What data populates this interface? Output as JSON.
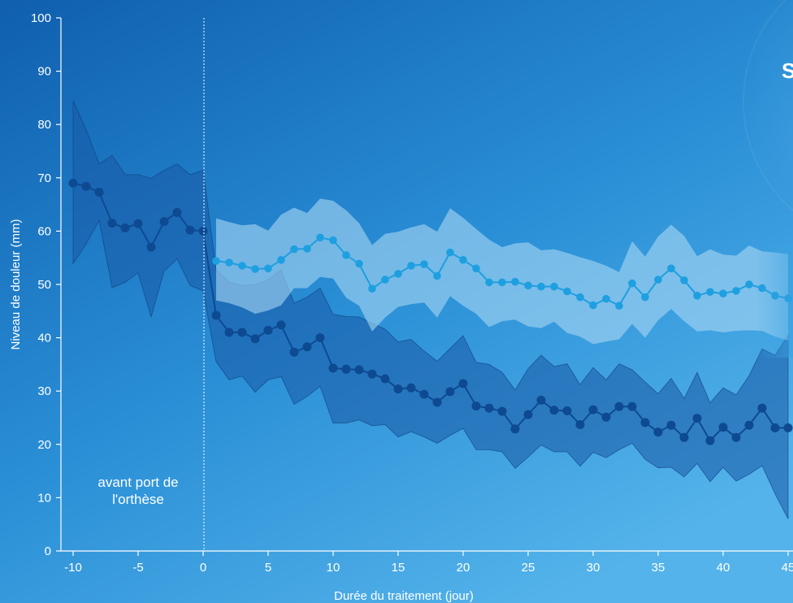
{
  "chart_data": {
    "type": "line",
    "xlabel": "Durée du traitement (jour)",
    "ylabel": "Niveau de douleur (mm)",
    "xlim": [
      -11,
      46
    ],
    "ylim": [
      0,
      100
    ],
    "x_ticks": [
      -10,
      -5,
      0,
      5,
      10,
      15,
      20,
      25,
      30,
      35,
      40,
      45
    ],
    "y_ticks": [
      0,
      10,
      20,
      30,
      40,
      50,
      60,
      70,
      80,
      90,
      100
    ],
    "annotation": "avant port de l'orthèse",
    "annotation_lines": [
      "avant port de",
      "l'orthèse"
    ],
    "divider_x": 0,
    "partial_edge_text": "S",
    "series": [
      {
        "color": "#0d4a92",
        "band_color": "#1a5aa6",
        "x": [
          -10,
          -9,
          -8,
          -7,
          -6,
          -5,
          -4,
          -3,
          -2,
          -1,
          0,
          1,
          2,
          3,
          4,
          5,
          6,
          7,
          8,
          9,
          10,
          11,
          12,
          13,
          14,
          15,
          16,
          17,
          18,
          19,
          20,
          21,
          22,
          23,
          24,
          25,
          26,
          27,
          28,
          29,
          30,
          31,
          32,
          33,
          34,
          35,
          36,
          37,
          38,
          39,
          40,
          41,
          42,
          43,
          44,
          45
        ],
        "mean": [
          69,
          68.4,
          67.3,
          61.5,
          60.6,
          61.4,
          57,
          61.8,
          63.5,
          60.2,
          60,
          44.2,
          41,
          41,
          39.8,
          41.4,
          42.4,
          37.3,
          38.3,
          40,
          34.3,
          34.1,
          34,
          33.2,
          32.3,
          30.4,
          30.6,
          29.4,
          27.9,
          29.9,
          31.4,
          27.2,
          26.8,
          26.2,
          22.9,
          25.6,
          28.3,
          26.4,
          26.3,
          23.7,
          26.5,
          25.1,
          27.1,
          27.1,
          24.1,
          22.3,
          23.6,
          21.3,
          24.9,
          20.7,
          23.2,
          21.3,
          23.6,
          26.8,
          23.1,
          23.1
        ],
        "upper": [
          84.5,
          79,
          72.6,
          74.2,
          70.6,
          70.6,
          69.9,
          71.4,
          72.6,
          70.6,
          71.4,
          52.8,
          50.4,
          49.8,
          50,
          50.9,
          52.7,
          46.5,
          47.6,
          49.3,
          44.4,
          44,
          43.9,
          42.7,
          41.6,
          39.2,
          39.7,
          37.5,
          35.6,
          38,
          40.4,
          35.4,
          35,
          33.5,
          30.2,
          34.2,
          36.7,
          34.6,
          35.1,
          31.2,
          34.4,
          32.1,
          35.1,
          34,
          31.7,
          29.5,
          32.4,
          28.6,
          33.5,
          27.8,
          30.6,
          29.3,
          32.9,
          37.9,
          36.7,
          40.5
        ],
        "lower": [
          53.9,
          57.6,
          62,
          49.4,
          50.4,
          52.2,
          43.9,
          52.5,
          54.8,
          49.8,
          48.8,
          35.5,
          32.1,
          32.8,
          29.8,
          32.1,
          32.7,
          27.5,
          29,
          30.9,
          24,
          24,
          24.6,
          23.5,
          23.7,
          21.4,
          22.4,
          21.4,
          20.2,
          21.7,
          23,
          19,
          19,
          18.6,
          15.5,
          17.6,
          19.9,
          18.6,
          18.6,
          15.9,
          18.5,
          17.5,
          19,
          20.2,
          17.2,
          15.6,
          15.7,
          13.9,
          16.4,
          13,
          15.7,
          13.1,
          14.4,
          16,
          10.7,
          6
        ]
      },
      {
        "color": "#1e9fe0",
        "band_color": "#a9d7f3",
        "x": [
          1,
          2,
          3,
          4,
          5,
          6,
          7,
          8,
          9,
          10,
          11,
          12,
          13,
          14,
          15,
          16,
          17,
          18,
          19,
          20,
          21,
          22,
          23,
          24,
          25,
          26,
          27,
          28,
          29,
          30,
          31,
          32,
          33,
          34,
          35,
          36,
          37,
          38,
          39,
          40,
          41,
          42,
          43,
          44,
          45
        ],
        "mean": [
          54.4,
          54.1,
          53.5,
          52.9,
          53,
          54.6,
          56.6,
          56.7,
          58.8,
          58.3,
          55.5,
          53.9,
          49.2,
          50.9,
          52,
          53.5,
          53.8,
          51.6,
          56,
          54.6,
          53,
          50.4,
          50.4,
          50.5,
          49.8,
          49.6,
          49.6,
          48.7,
          47.6,
          46.1,
          47.3,
          46,
          50.2,
          47.6,
          50.9,
          53,
          50.8,
          47.9,
          48.6,
          48.3,
          48.8,
          50,
          49.3,
          47.9,
          47.4
        ],
        "upper": [
          62.4,
          61.7,
          61.1,
          61.3,
          60.1,
          63.1,
          64.4,
          63.4,
          66.1,
          65.7,
          63.9,
          61.5,
          57.4,
          59.5,
          59.9,
          60.7,
          61.3,
          59.9,
          64.3,
          62.5,
          60.4,
          58.4,
          57,
          57.7,
          57.9,
          56.4,
          56.6,
          55.9,
          55.1,
          54.4,
          53.5,
          52.3,
          58.1,
          55.2,
          59,
          61.2,
          59.1,
          55.3,
          56.6,
          55.6,
          55.4,
          57.3,
          56.2,
          56,
          55.7
        ],
        "lower": [
          47,
          46.5,
          45.7,
          44.5,
          45.1,
          46.1,
          49.3,
          49.3,
          51.4,
          51.1,
          47.5,
          46,
          41.2,
          43.8,
          45.8,
          46.3,
          46.6,
          43.8,
          47.8,
          46,
          44.5,
          42,
          43.1,
          43.4,
          42.1,
          41.8,
          43,
          40.9,
          40.2,
          38.8,
          39.3,
          39.7,
          42.6,
          40,
          43.3,
          45.4,
          43.1,
          41.2,
          41.4,
          41,
          41.3,
          41.4,
          41.3,
          40.2,
          39.5
        ]
      }
    ]
  }
}
